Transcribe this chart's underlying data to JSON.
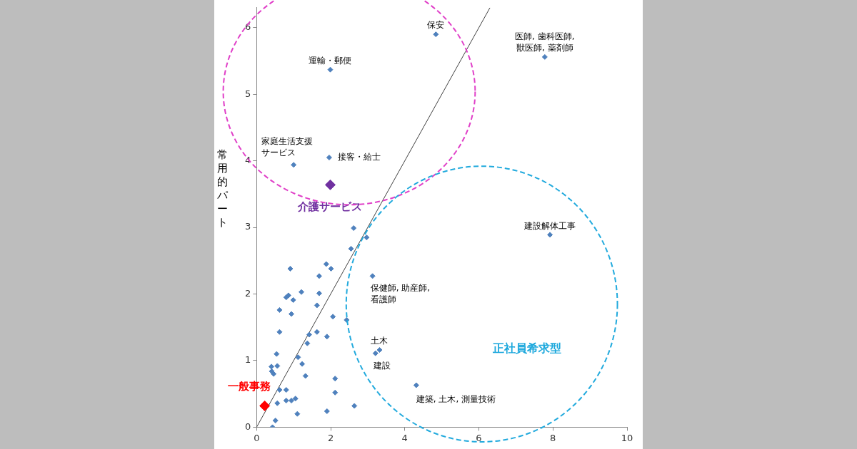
{
  "chart_data": {
    "type": "scatter",
    "ylabel": "常用的パート",
    "xlim": [
      0,
      10
    ],
    "ylim": [
      0,
      6.3
    ],
    "xticks": [
      0,
      2,
      4,
      6,
      8,
      10
    ],
    "yticks": [
      0,
      1,
      2,
      3,
      4,
      5,
      6
    ],
    "grid": false,
    "legend": false,
    "marker": "diamond",
    "series": [
      {
        "color": "#4f81bd",
        "x": [
          2.62,
          2.97,
          2.55,
          1.88,
          2.01,
          0.91,
          1.69,
          3.13,
          1.21,
          1.69,
          0.86,
          0.8,
          0.99,
          1.63,
          0.62,
          0.94,
          2.06,
          2.43,
          0.62,
          1.63,
          1.42,
          1.9,
          1.37,
          3.21,
          3.32,
          0.54,
          1.12,
          1.23,
          0.4,
          0.56,
          0.41,
          0.46,
          1.32,
          2.12,
          4.31,
          0.62,
          0.8,
          2.12,
          0.56,
          0.8,
          0.94,
          1.05,
          2.64,
          1.9,
          1.1,
          0.51,
          0.43,
          4.84,
          1.99,
          1.96,
          1.0,
          7.78,
          7.92
        ],
        "values": [
          2.99,
          2.85,
          2.68,
          2.45,
          2.38,
          2.38,
          2.27,
          2.27,
          2.03,
          2.01,
          1.98,
          1.95,
          1.91,
          1.83,
          1.76,
          1.7,
          1.66,
          1.61,
          1.43,
          1.43,
          1.39,
          1.36,
          1.26,
          1.11,
          1.16,
          1.1,
          1.05,
          0.95,
          0.91,
          0.92,
          0.84,
          0.8,
          0.77,
          0.73,
          0.63,
          0.56,
          0.56,
          0.52,
          0.36,
          0.4,
          0.4,
          0.43,
          0.32,
          0.24,
          0.2,
          0.1,
          0,
          5.9,
          5.37,
          4.05,
          3.94,
          5.56,
          2.89
        ]
      },
      {
        "name": "介護サービス",
        "color": "#7030a0",
        "x": [
          1.99
        ],
        "values": [
          3.64
        ]
      },
      {
        "name": "一般事務",
        "color": "#ff0000",
        "x": [
          0.22
        ],
        "values": [
          0.32
        ]
      },
      {
        "type": "line",
        "marker": "none",
        "color": "#404040",
        "x": [
          0,
          6.3
        ],
        "values": [
          0,
          6.3
        ]
      }
    ],
    "annotations": [
      {
        "text": "保安",
        "x": 4.84,
        "y": 5.9
      },
      {
        "text": "医師, 歯科医師,\n獣医師, 薬剤師",
        "x": 7.78,
        "y": 5.56
      },
      {
        "text": "運輸・郵便",
        "x": 1.99,
        "y": 5.37
      },
      {
        "text": "家庭生活支援サービス",
        "x": 1.0,
        "y": 3.94
      },
      {
        "text": "接客・給士",
        "x": 1.96,
        "y": 4.05
      },
      {
        "text": "建設解体工事",
        "x": 7.92,
        "y": 2.89
      },
      {
        "text": "保健師, 助産師,\n看護師",
        "x": 3.13,
        "y": 2.27
      },
      {
        "text": "土木",
        "x": 3.32,
        "y": 1.16
      },
      {
        "text": "建設",
        "x": 3.21,
        "y": 1.11
      },
      {
        "text": "建築, 土木, 測量技術",
        "x": 4.31,
        "y": 0.63
      },
      "正社員希求型"
    ]
  }
}
